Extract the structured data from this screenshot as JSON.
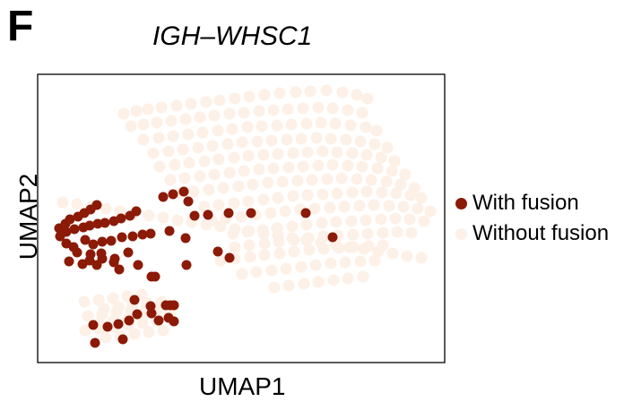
{
  "panel_label": "F",
  "chart_data": {
    "type": "scatter",
    "title": "IGH–WHSC1",
    "xlabel": "UMAP1",
    "ylabel": "UMAP2",
    "axes_ticks": false,
    "grid": false,
    "legend_position": "right",
    "colors": {
      "with": "#8b1a07",
      "without": "#fdf0e6"
    },
    "series": [
      {
        "name": "With fusion",
        "x": [
          66,
          73,
          78,
          87,
          94,
          101,
          108,
          67,
          74,
          83,
          93,
          100,
          109,
          117,
          127,
          135,
          145,
          152,
          182,
          193,
          205,
          210,
          217,
          232,
          255,
          280,
          341,
          74,
          82,
          95,
          104,
          114,
          124,
          136,
          148,
          159,
          168,
          86,
          101,
          113,
          128,
          143,
          189,
          207,
          243,
          256,
          371,
          77,
          92,
          100,
          108,
          133,
          127,
          114,
          154,
          173,
          169,
          208,
          150,
          168,
          185,
          194,
          153,
          144,
          120,
          169,
          177,
          188,
          190,
          194,
          104,
          132,
          137,
          106
        ],
        "y": [
          255,
          250,
          245,
          242,
          238,
          234,
          229,
          264,
          259,
          256,
          254,
          252,
          250,
          249,
          247,
          244,
          241,
          236,
          220,
          217,
          214,
          225,
          241,
          240,
          238,
          238,
          238,
          272,
          276,
          268,
          273,
          270,
          269,
          265,
          264,
          262,
          261,
          282,
          284,
          283,
          289,
          282,
          258,
          266,
          281,
          288,
          265,
          292,
          295,
          291,
          296,
          301,
          293,
          289,
          296,
          309,
          309,
          296,
          335,
          342,
          341,
          341,
          351,
          358,
          365,
          350,
          358,
          355,
          341,
          359,
          363,
          362,
          379,
          383
        ]
      },
      {
        "name": "Without fusion",
        "x": [
          138,
          152,
          165,
          180,
          197,
          213,
          230,
          245,
          262,
          278,
          295,
          312,
          330,
          346,
          364,
          382,
          398,
          410,
          146,
          160,
          175,
          191,
          207,
          223,
          239,
          256,
          272,
          289,
          305,
          321,
          338,
          355,
          371,
          388,
          404,
          160,
          177,
          193,
          210,
          226,
          243,
          259,
          276,
          292,
          309,
          325,
          342,
          358,
          374,
          391,
          408,
          420,
          171,
          188,
          204,
          221,
          237,
          254,
          270,
          287,
          303,
          320,
          336,
          353,
          369,
          386,
          402,
          418,
          432,
          178,
          195,
          211,
          228,
          244,
          261,
          277,
          294,
          310,
          327,
          343,
          360,
          376,
          393,
          409,
          425,
          440,
          190,
          206,
          223,
          239,
          256,
          272,
          289,
          305,
          322,
          338,
          355,
          371,
          388,
          404,
          421,
          437,
          452,
          200,
          216,
          233,
          249,
          266,
          282,
          299,
          315,
          332,
          348,
          365,
          381,
          398,
          414,
          431,
          447,
          462,
          228,
          244,
          261,
          277,
          294,
          310,
          327,
          343,
          360,
          376,
          393,
          409,
          426,
          442,
          458,
          470,
          236,
          252,
          269,
          285,
          302,
          318,
          335,
          351,
          368,
          384,
          401,
          417,
          434,
          450,
          466,
          480,
          260,
          276,
          293,
          309,
          326,
          342,
          359,
          375,
          392,
          408,
          425,
          441,
          457,
          473,
          262,
          278,
          295,
          311,
          328,
          344,
          361,
          377,
          394,
          410,
          427,
          443,
          459,
          246,
          262,
          279,
          295,
          312,
          328,
          345,
          361,
          378,
          394,
          411,
          427,
          270,
          286,
          303,
          319,
          336,
          352,
          369,
          385,
          402,
          418,
          306,
          322,
          339,
          355,
          372,
          388,
          405,
          94,
          110,
          126,
          142,
          158,
          116,
          132,
          148,
          164,
          180,
          98,
          114,
          130,
          146,
          162,
          178,
          194,
          110,
          126,
          142,
          158,
          174,
          190,
          95,
          111,
          127,
          143,
          159,
          175,
          191,
          118,
          134,
          150,
          166,
          182,
          70,
          86,
          102,
          118,
          134,
          150,
          166,
          182,
          198,
          214,
          230,
          246,
          262,
          278,
          294,
          310,
          326,
          342,
          358,
          374,
          390,
          406,
          422,
          438,
          454,
          470
        ],
        "y": [
          127,
          124,
          122,
          120,
          118,
          116,
          114,
          112,
          110,
          108,
          106,
          104,
          103,
          102,
          101,
          103,
          106,
          110,
          141,
          139,
          137,
          135,
          133,
          131,
          129,
          127,
          126,
          124,
          123,
          122,
          121,
          120,
          121,
          123,
          126,
          156,
          154,
          152,
          150,
          148,
          146,
          144,
          142,
          141,
          140,
          139,
          138,
          137,
          138,
          140,
          142,
          146,
          171,
          169,
          167,
          165,
          163,
          161,
          159,
          158,
          157,
          156,
          155,
          154,
          155,
          156,
          158,
          161,
          165,
          186,
          184,
          182,
          180,
          178,
          176,
          174,
          173,
          172,
          171,
          170,
          169,
          170,
          171,
          173,
          176,
          180,
          201,
          199,
          197,
          195,
          193,
          191,
          189,
          188,
          187,
          186,
          185,
          184,
          185,
          186,
          188,
          191,
          195,
          216,
          214,
          212,
          210,
          208,
          206,
          204,
          203,
          202,
          201,
          200,
          199,
          200,
          201,
          203,
          206,
          210,
          231,
          229,
          227,
          225,
          223,
          221,
          219,
          218,
          217,
          216,
          215,
          214,
          215,
          216,
          218,
          221,
          246,
          244,
          242,
          240,
          238,
          236,
          234,
          233,
          232,
          231,
          230,
          229,
          230,
          231,
          233,
          236,
          261,
          259,
          257,
          255,
          253,
          251,
          249,
          248,
          247,
          246,
          245,
          244,
          245,
          247,
          276,
          274,
          272,
          270,
          268,
          266,
          264,
          263,
          262,
          261,
          260,
          259,
          260,
          291,
          289,
          287,
          285,
          283,
          281,
          279,
          278,
          277,
          276,
          275,
          274,
          306,
          304,
          302,
          300,
          298,
          296,
          294,
          293,
          292,
          291,
          321,
          319,
          317,
          315,
          313,
          311,
          309,
          337,
          335,
          333,
          331,
          329,
          345,
          343,
          341,
          339,
          337,
          353,
          351,
          349,
          347,
          345,
          343,
          341,
          361,
          359,
          357,
          355,
          353,
          351,
          369,
          367,
          365,
          363,
          361,
          359,
          357,
          377,
          375,
          373,
          371,
          369,
          226,
          228,
          231,
          233,
          236,
          238,
          241,
          243,
          246,
          248,
          251,
          253,
          256,
          258,
          261,
          263,
          266,
          268,
          271,
          273,
          276,
          278,
          281,
          283,
          286,
          288
        ]
      }
    ]
  }
}
